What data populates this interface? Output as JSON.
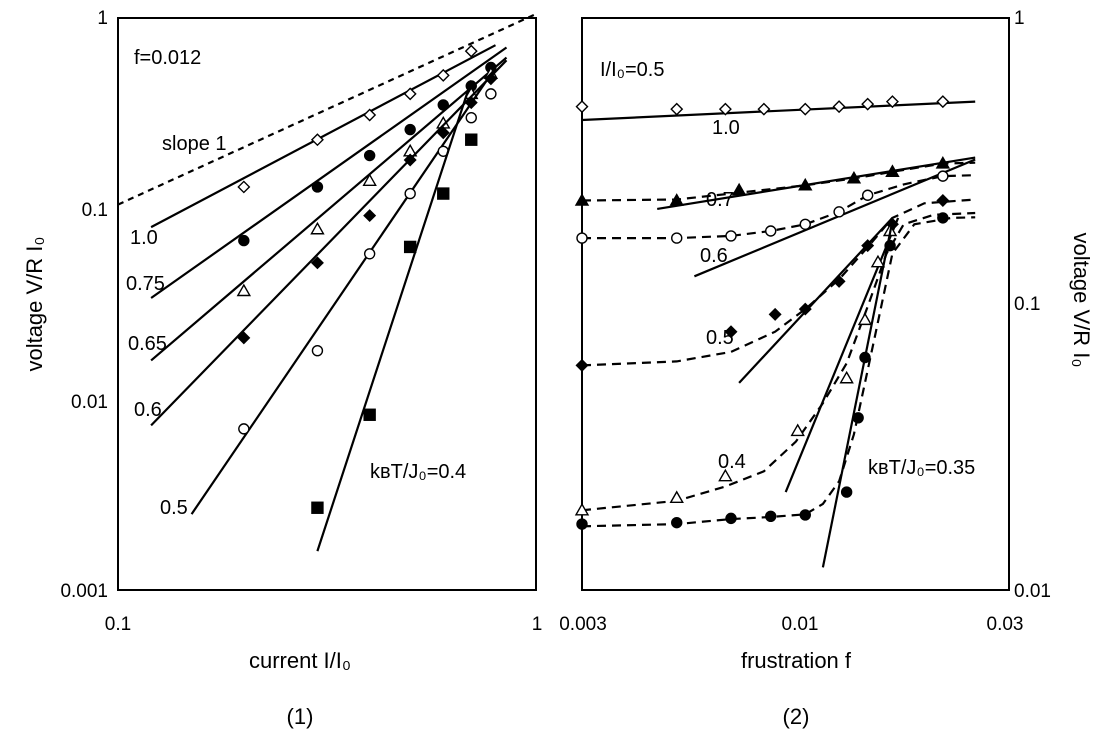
{
  "chart_data": [
    {
      "id": "panel1",
      "type": "scatter",
      "x_scale": "log",
      "y_scale": "log",
      "xlim": [
        0.1,
        1
      ],
      "ylim": [
        0.001,
        1
      ],
      "xticks": [
        "0.1",
        "1"
      ],
      "yticks": [
        "0.001",
        "0.01",
        "0.1",
        "1"
      ],
      "xlabel": "current  I/I₀",
      "ylabel": "voltage  V/R I₀",
      "panel_label": "(1)",
      "annotation_f": "f=0.012",
      "annotation_temp": "kʙT/J₀=0.4",
      "reference": {
        "label": "slope  1",
        "points": [
          [
            0.1,
            0.105
          ],
          [
            1,
            1.05
          ]
        ],
        "style": "dotted"
      },
      "series": [
        {
          "name": "1.0",
          "marker": "diamond-open",
          "points": [
            [
              0.2,
              0.13
            ],
            [
              0.3,
              0.23
            ],
            [
              0.4,
              0.31
            ],
            [
              0.5,
              0.4
            ],
            [
              0.6,
              0.5
            ],
            [
              0.7,
              0.67
            ]
          ],
          "fit": [
            [
              0.12,
              0.08
            ],
            [
              0.8,
              0.72
            ]
          ]
        },
        {
          "name": "0.75",
          "marker": "circle-filled",
          "points": [
            [
              0.2,
              0.068
            ],
            [
              0.3,
              0.13
            ],
            [
              0.4,
              0.19
            ],
            [
              0.5,
              0.26
            ],
            [
              0.6,
              0.35
            ],
            [
              0.7,
              0.44
            ],
            [
              0.78,
              0.55
            ]
          ],
          "fit": [
            [
              0.12,
              0.034
            ],
            [
              0.85,
              0.7
            ]
          ]
        },
        {
          "name": "0.65",
          "marker": "triangle-open",
          "points": [
            [
              0.2,
              0.037
            ],
            [
              0.3,
              0.078
            ],
            [
              0.4,
              0.14
            ],
            [
              0.5,
              0.2
            ],
            [
              0.6,
              0.28
            ],
            [
              0.7,
              0.4
            ],
            [
              0.78,
              0.51
            ]
          ],
          "fit": [
            [
              0.12,
              0.016
            ],
            [
              0.85,
              0.62
            ]
          ]
        },
        {
          "name": "0.6",
          "marker": "diamond-filled",
          "points": [
            [
              0.2,
              0.021
            ],
            [
              0.3,
              0.052
            ],
            [
              0.4,
              0.092
            ],
            [
              0.5,
              0.18
            ],
            [
              0.6,
              0.25
            ],
            [
              0.7,
              0.36
            ],
            [
              0.78,
              0.48
            ]
          ],
          "fit": [
            [
              0.12,
              0.0073
            ],
            [
              0.85,
              0.6
            ]
          ]
        },
        {
          "name": "0.5",
          "marker": "circle-open",
          "points": [
            [
              0.2,
              0.007
            ],
            [
              0.3,
              0.018
            ],
            [
              0.4,
              0.058
            ],
            [
              0.5,
              0.12
            ],
            [
              0.6,
              0.2
            ],
            [
              0.7,
              0.3
            ],
            [
              0.78,
              0.4
            ]
          ],
          "fit": [
            [
              0.15,
              0.0025
            ],
            [
              0.8,
              0.55
            ]
          ]
        },
        {
          "name": "",
          "marker": "square-filled",
          "points": [
            [
              0.3,
              0.0027
            ],
            [
              0.4,
              0.0083
            ],
            [
              0.5,
              0.063
            ],
            [
              0.6,
              0.12
            ],
            [
              0.7,
              0.23
            ]
          ],
          "fit": [
            [
              0.3,
              0.0016
            ],
            [
              0.7,
              0.47
            ]
          ]
        }
      ]
    },
    {
      "id": "panel2",
      "type": "scatter",
      "x_scale": "log",
      "y_scale": "log",
      "xlim": [
        0.003,
        0.03
      ],
      "ylim": [
        0.01,
        1
      ],
      "xticks": [
        "0.003",
        "0.01",
        "0.03"
      ],
      "yticks": [
        "0.01",
        "0.1",
        "1"
      ],
      "xlabel": "frustration  f",
      "ylabel": "voltage  V/R I₀",
      "panel_label": "(2)",
      "annotation_i": "I/I₀=0.5",
      "annotation_temp": "kʙT/J₀=0.35",
      "series": [
        {
          "name": "1.0",
          "marker": "diamond-open",
          "points": [
            [
              0.003,
              0.49
            ],
            [
              0.005,
              0.48
            ],
            [
              0.0065,
              0.48
            ],
            [
              0.008,
              0.48
            ],
            [
              0.01,
              0.48
            ],
            [
              0.012,
              0.49
            ],
            [
              0.014,
              0.5
            ],
            [
              0.016,
              0.51
            ],
            [
              0.021,
              0.51
            ]
          ],
          "fit": [
            [
              0.003,
              0.44
            ],
            [
              0.025,
              0.51
            ]
          ]
        },
        {
          "name": "0.7",
          "marker": "triangle-filled",
          "points": [
            [
              0.003,
              0.23
            ],
            [
              0.005,
              0.23
            ],
            [
              0.007,
              0.25
            ],
            [
              0.01,
              0.26
            ],
            [
              0.013,
              0.275
            ],
            [
              0.016,
              0.29
            ],
            [
              0.021,
              0.31
            ]
          ],
          "fit": [
            [
              0.0045,
              0.215
            ],
            [
              0.025,
              0.325
            ]
          ],
          "curve": [
            [
              0.003,
              0.23
            ],
            [
              0.005,
              0.232
            ],
            [
              0.007,
              0.245
            ],
            [
              0.01,
              0.26
            ],
            [
              0.013,
              0.275
            ],
            [
              0.016,
              0.29
            ],
            [
              0.021,
              0.31
            ],
            [
              0.025,
              0.312
            ]
          ]
        },
        {
          "name": "0.6",
          "marker": "circle-open",
          "points": [
            [
              0.003,
              0.17
            ],
            [
              0.005,
              0.17
            ],
            [
              0.0067,
              0.173
            ],
            [
              0.0083,
              0.18
            ],
            [
              0.01,
              0.19
            ],
            [
              0.012,
              0.21
            ],
            [
              0.014,
              0.24
            ],
            [
              0.021,
              0.28
            ]
          ],
          "fit": [
            [
              0.0055,
              0.125
            ],
            [
              0.025,
              0.32
            ]
          ],
          "curve": [
            [
              0.003,
              0.17
            ],
            [
              0.005,
              0.17
            ],
            [
              0.0067,
              0.173
            ],
            [
              0.0083,
              0.18
            ],
            [
              0.01,
              0.19
            ],
            [
              0.012,
              0.21
            ],
            [
              0.014,
              0.24
            ],
            [
              0.017,
              0.262
            ],
            [
              0.021,
              0.28
            ],
            [
              0.025,
              0.282
            ]
          ]
        },
        {
          "name": "0.5",
          "marker": "diamond-filled",
          "points": [
            [
              0.003,
              0.061
            ],
            [
              0.0067,
              0.08
            ],
            [
              0.0085,
              0.092
            ],
            [
              0.01,
              0.096
            ],
            [
              0.012,
              0.12
            ],
            [
              0.014,
              0.16
            ],
            [
              0.016,
              0.19
            ],
            [
              0.021,
              0.23
            ]
          ],
          "fit": [
            [
              0.007,
              0.053
            ],
            [
              0.016,
              0.2
            ]
          ],
          "curve": [
            [
              0.003,
              0.061
            ],
            [
              0.005,
              0.063
            ],
            [
              0.0067,
              0.068
            ],
            [
              0.0085,
              0.08
            ],
            [
              0.01,
              0.096
            ],
            [
              0.012,
              0.122
            ],
            [
              0.014,
              0.158
            ],
            [
              0.016,
              0.2
            ],
            [
              0.019,
              0.225
            ],
            [
              0.025,
              0.232
            ]
          ]
        },
        {
          "name": "0.4",
          "marker": "triangle-open",
          "points": [
            [
              0.003,
              0.019
            ],
            [
              0.005,
              0.021
            ],
            [
              0.0065,
              0.025
            ],
            [
              0.0096,
              0.036
            ],
            [
              0.0125,
              0.055
            ],
            [
              0.0138,
              0.088
            ],
            [
              0.0148,
              0.14
            ],
            [
              0.0158,
              0.18
            ]
          ],
          "fit": [
            [
              0.009,
              0.022
            ],
            [
              0.0165,
              0.2
            ]
          ],
          "curve": [
            [
              0.003,
              0.019
            ],
            [
              0.005,
              0.0205
            ],
            [
              0.0065,
              0.023
            ],
            [
              0.008,
              0.026
            ],
            [
              0.0095,
              0.033
            ],
            [
              0.011,
              0.045
            ],
            [
              0.0125,
              0.062
            ],
            [
              0.014,
              0.098
            ],
            [
              0.0155,
              0.15
            ],
            [
              0.017,
              0.19
            ],
            [
              0.02,
              0.205
            ],
            [
              0.025,
              0.208
            ]
          ]
        },
        {
          "name": "",
          "marker": "circle-filled",
          "points": [
            [
              0.003,
              0.017
            ],
            [
              0.005,
              0.0172
            ],
            [
              0.0067,
              0.0178
            ],
            [
              0.0083,
              0.0181
            ],
            [
              0.01,
              0.0183
            ],
            [
              0.0125,
              0.022
            ],
            [
              0.0133,
              0.04
            ],
            [
              0.0138,
              0.065
            ],
            [
              0.0158,
              0.16
            ],
            [
              0.021,
              0.2
            ]
          ],
          "fit": [
            [
              0.011,
              0.012
            ],
            [
              0.016,
              0.195
            ]
          ],
          "curve": [
            [
              0.003,
              0.0167
            ],
            [
              0.005,
              0.017
            ],
            [
              0.0067,
              0.0177
            ],
            [
              0.0083,
              0.018
            ],
            [
              0.01,
              0.0184
            ],
            [
              0.011,
              0.02
            ],
            [
              0.012,
              0.024
            ],
            [
              0.013,
              0.035
            ],
            [
              0.0145,
              0.075
            ],
            [
              0.016,
              0.15
            ],
            [
              0.018,
              0.19
            ],
            [
              0.022,
              0.2
            ],
            [
              0.025,
              0.201
            ]
          ]
        }
      ]
    }
  ]
}
